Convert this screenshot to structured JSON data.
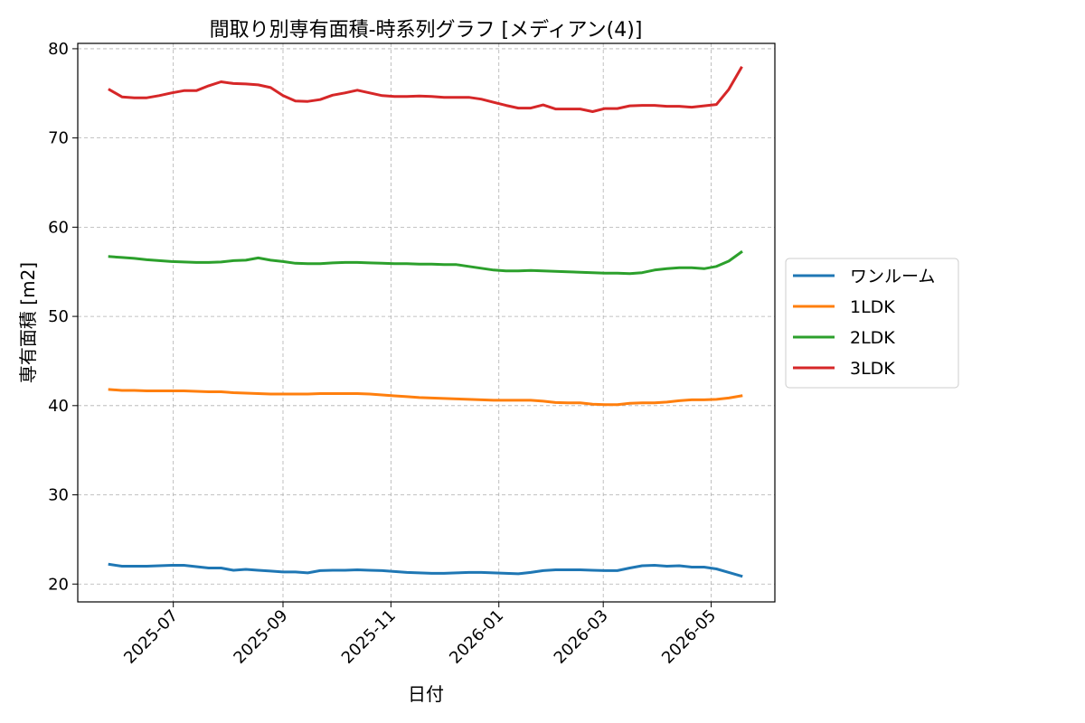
{
  "chart_data": {
    "type": "line",
    "title": "間取り別専有面積-時系列グラフ [メディアン(4)]",
    "xlabel": "日付",
    "ylabel": "専有面積 [m2]",
    "xlim": [
      "2025-05-08",
      "2026-06-06"
    ],
    "ylim": [
      18,
      80.6
    ],
    "x_ticks": [
      "2025-07",
      "2025-09",
      "2025-11",
      "2026-01",
      "2026-03",
      "2026-05"
    ],
    "y_ticks": [
      20,
      30,
      40,
      50,
      60,
      70,
      80
    ],
    "grid": true,
    "legend_position": "center-right-outside",
    "x": [
      "2025-05-26",
      "2025-06-02",
      "2025-06-09",
      "2025-06-16",
      "2025-06-23",
      "2025-06-30",
      "2025-07-07",
      "2025-07-14",
      "2025-07-21",
      "2025-07-28",
      "2025-08-04",
      "2025-08-11",
      "2025-08-18",
      "2025-08-25",
      "2025-09-01",
      "2025-09-08",
      "2025-09-15",
      "2025-09-22",
      "2025-09-29",
      "2025-10-06",
      "2025-10-13",
      "2025-10-20",
      "2025-10-27",
      "2025-11-03",
      "2025-11-10",
      "2025-11-17",
      "2025-11-24",
      "2025-12-01",
      "2025-12-08",
      "2025-12-15",
      "2025-12-22",
      "2025-12-29",
      "2026-01-05",
      "2026-01-12",
      "2026-01-19",
      "2026-01-26",
      "2026-02-02",
      "2026-02-09",
      "2026-02-16",
      "2026-02-23",
      "2026-03-02",
      "2026-03-09",
      "2026-03-16",
      "2026-03-23",
      "2026-03-30",
      "2026-04-06",
      "2026-04-13",
      "2026-04-20",
      "2026-04-27",
      "2026-05-04",
      "2026-05-11",
      "2026-05-18"
    ],
    "series": [
      {
        "name": "ワンルーム",
        "color": "#1f77b4",
        "values": [
          22.2,
          22.0,
          22.0,
          22.0,
          22.05,
          22.1,
          22.1,
          21.95,
          21.8,
          21.8,
          21.55,
          21.65,
          21.55,
          21.45,
          21.35,
          21.35,
          21.25,
          21.5,
          21.55,
          21.55,
          21.6,
          21.55,
          21.5,
          21.4,
          21.3,
          21.25,
          21.2,
          21.2,
          21.25,
          21.3,
          21.3,
          21.25,
          21.2,
          21.15,
          21.3,
          21.5,
          21.6,
          21.6,
          21.6,
          21.55,
          21.5,
          21.5,
          21.8,
          22.05,
          22.1,
          22.0,
          22.05,
          21.9,
          21.9,
          21.7,
          21.3,
          20.9
        ]
      },
      {
        "name": "1LDK",
        "color": "#ff7f0e",
        "values": [
          41.8,
          41.7,
          41.7,
          41.65,
          41.65,
          41.65,
          41.65,
          41.6,
          41.55,
          41.55,
          41.45,
          41.4,
          41.35,
          41.3,
          41.3,
          41.3,
          41.3,
          41.35,
          41.35,
          41.35,
          41.35,
          41.3,
          41.2,
          41.1,
          41.0,
          40.9,
          40.85,
          40.8,
          40.75,
          40.7,
          40.65,
          40.6,
          40.6,
          40.6,
          40.6,
          40.5,
          40.35,
          40.3,
          40.3,
          40.15,
          40.1,
          40.1,
          40.25,
          40.3,
          40.3,
          40.4,
          40.55,
          40.65,
          40.65,
          40.7,
          40.85,
          41.1
        ]
      },
      {
        "name": "2LDK",
        "color": "#2ca02c",
        "values": [
          56.7,
          56.6,
          56.5,
          56.35,
          56.25,
          56.15,
          56.1,
          56.05,
          56.05,
          56.1,
          56.25,
          56.3,
          56.55,
          56.3,
          56.15,
          55.95,
          55.9,
          55.9,
          56.0,
          56.05,
          56.05,
          56.0,
          55.95,
          55.9,
          55.9,
          55.85,
          55.85,
          55.8,
          55.8,
          55.6,
          55.4,
          55.2,
          55.1,
          55.1,
          55.15,
          55.1,
          55.05,
          55.0,
          54.95,
          54.9,
          54.85,
          54.85,
          54.8,
          54.9,
          55.2,
          55.35,
          55.45,
          55.45,
          55.35,
          55.6,
          56.2,
          57.2
        ]
      },
      {
        "name": "3LDK",
        "color": "#d62728",
        "values": [
          75.4,
          74.6,
          74.5,
          74.5,
          74.75,
          75.05,
          75.3,
          75.3,
          75.85,
          76.3,
          76.1,
          76.05,
          75.95,
          75.65,
          74.75,
          74.15,
          74.1,
          74.3,
          74.8,
          75.05,
          75.35,
          75.05,
          74.75,
          74.65,
          74.65,
          74.7,
          74.65,
          74.55,
          74.55,
          74.55,
          74.35,
          74.0,
          73.65,
          73.35,
          73.35,
          73.7,
          73.25,
          73.25,
          73.25,
          72.95,
          73.3,
          73.3,
          73.6,
          73.65,
          73.65,
          73.55,
          73.55,
          73.45,
          73.6,
          73.75,
          75.45,
          77.85
        ]
      }
    ]
  }
}
